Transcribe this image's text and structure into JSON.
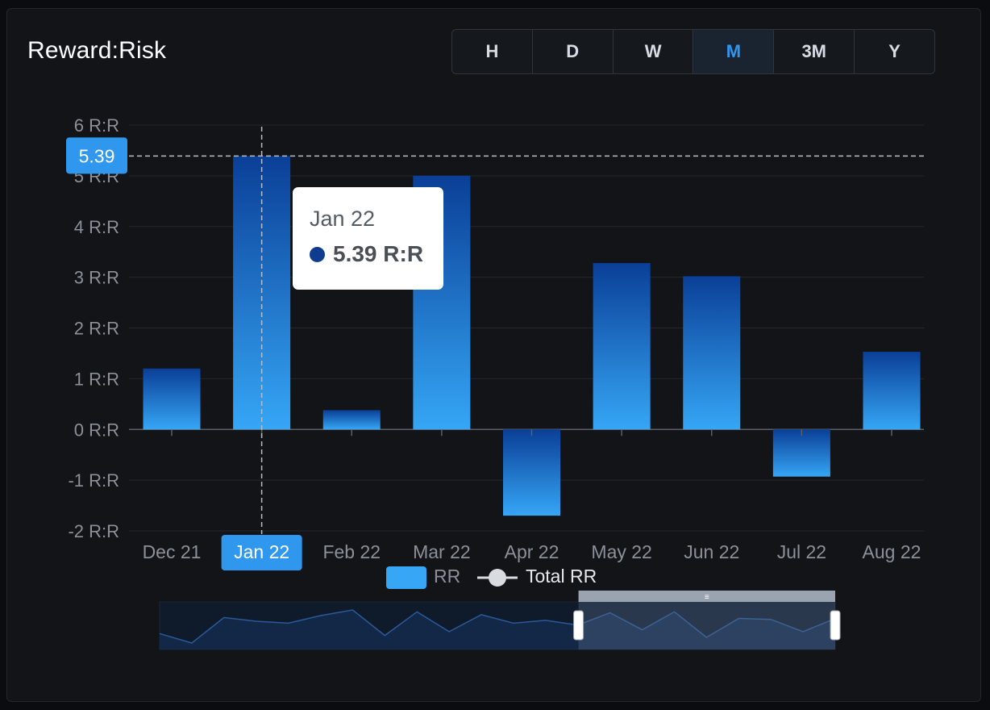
{
  "title": "Reward:Risk",
  "periods": [
    {
      "label": "H",
      "active": false
    },
    {
      "label": "D",
      "active": false
    },
    {
      "label": "W",
      "active": false
    },
    {
      "label": "M",
      "active": true
    },
    {
      "label": "3M",
      "active": false
    },
    {
      "label": "Y",
      "active": false
    }
  ],
  "tooltip": {
    "date": "Jan 22",
    "value": "5.39 R:R"
  },
  "crosshair": {
    "y_value": 5.39,
    "y_label": "5.39",
    "x_label": "Jan 22",
    "index": 1
  },
  "colors": {
    "background": "#121418",
    "bar_top": "#0a3f97",
    "bar_bottom": "#36a6f5",
    "accent": "#2f97ee",
    "text_muted": "#8b9099"
  },
  "chart_data": {
    "type": "bar",
    "categories": [
      "Dec 21",
      "Jan 22",
      "Feb 22",
      "Mar 22",
      "Apr 22",
      "May 22",
      "Jun 22",
      "Jul 22",
      "Aug 22"
    ],
    "series": [
      {
        "name": "RR",
        "values": [
          1.2,
          5.39,
          0.38,
          5.0,
          -1.7,
          3.28,
          3.02,
          -0.93,
          1.53
        ]
      }
    ],
    "y_ticks": [
      -2,
      -1,
      0,
      1,
      2,
      3,
      4,
      5,
      6
    ],
    "y_tick_labels": [
      "-2 R:R",
      "-1 R:R",
      "0 R:R",
      "1 R:R",
      "2 R:R",
      "3 R:R",
      "4 R:R",
      "5 R:R",
      "6 R:R"
    ],
    "ylim": [
      -2,
      6
    ],
    "grid": true,
    "legend": {
      "position": "bottom",
      "items": [
        "RR",
        "Total RR"
      ]
    },
    "navigator": {
      "line_values": [
        1.2,
        0.2,
        2.9,
        2.5,
        2.3,
        3.1,
        3.7,
        1.0,
        3.5,
        1.4,
        3.2,
        2.3,
        2.6,
        2.1,
        3.4,
        1.6,
        3.5,
        0.8,
        2.8,
        2.7,
        1.4,
        2.8
      ],
      "window_start_fraction": 0.62,
      "window_end_fraction": 1.0
    }
  }
}
